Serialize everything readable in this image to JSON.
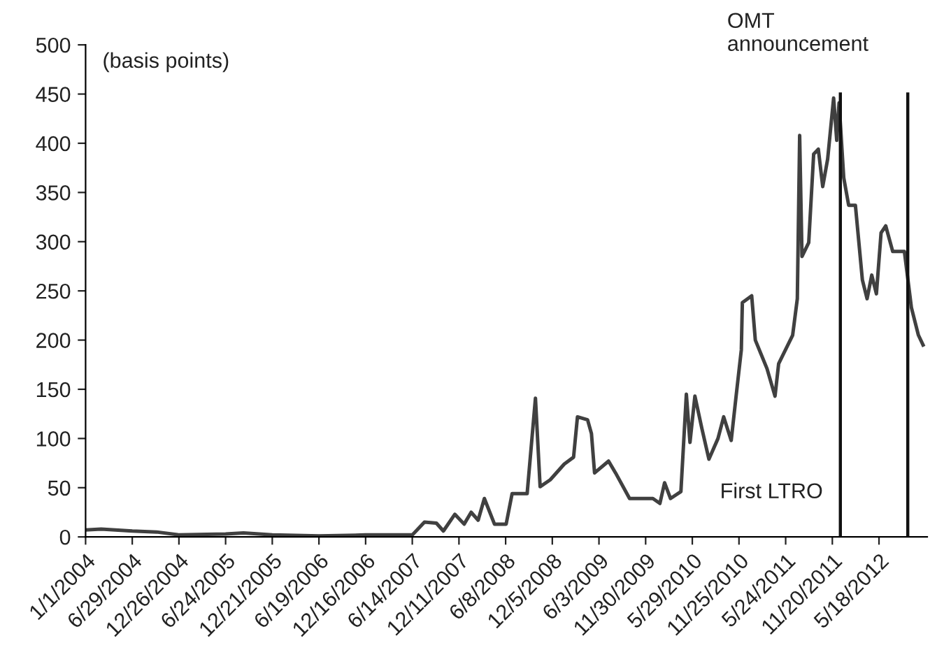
{
  "chart_data": {
    "type": "line",
    "ylabel": "(basis points)",
    "x": [
      "2004-01-01",
      "2004-03-01",
      "2004-06-29",
      "2004-10-01",
      "2004-12-26",
      "2005-06-24",
      "2005-09-01",
      "2005-12-21",
      "2006-06-19",
      "2006-12-16",
      "2007-06-14",
      "2007-07-31",
      "2007-09-15",
      "2007-10-12",
      "2007-11-25",
      "2007-12-31",
      "2008-01-27",
      "2008-02-23",
      "2008-03-18",
      "2008-04-26",
      "2008-06-10",
      "2008-07-03",
      "2008-08-30",
      "2008-10-01",
      "2008-10-19",
      "2008-11-27",
      "2009-01-20",
      "2009-02-25",
      "2009-03-12",
      "2009-04-20",
      "2009-05-05",
      "2009-05-17",
      "2009-07-10",
      "2009-08-06",
      "2009-09-29",
      "2009-12-28",
      "2010-01-24",
      "2010-02-11",
      "2010-03-06",
      "2010-04-15",
      "2010-05-06",
      "2010-05-20",
      "2010-06-08",
      "2010-07-05",
      "2010-08-01",
      "2010-09-05",
      "2010-09-27",
      "2010-10-26",
      "2010-11-16",
      "2010-12-04",
      "2010-12-08",
      "2011-01-13",
      "2011-01-27",
      "2011-03-13",
      "2011-04-13",
      "2011-04-27",
      "2011-06-20",
      "2011-07-08",
      "2011-07-17",
      "2011-07-26",
      "2011-08-21",
      "2011-09-09",
      "2011-09-27",
      "2011-10-14",
      "2011-11-02",
      "2011-11-25",
      "2011-12-07",
      "2011-12-16",
      "2012-01-03",
      "2012-01-22",
      "2012-02-17",
      "2012-03-15",
      "2012-04-02",
      "2012-04-20",
      "2012-05-08",
      "2012-05-26",
      "2012-06-13",
      "2012-07-10",
      "2012-08-24",
      "2012-09-20",
      "2012-10-17",
      "2012-11-04"
    ],
    "series": [
      {
        "color": "#404040",
        "values": [
          7,
          8,
          6,
          5,
          2,
          3,
          4,
          2,
          1,
          2,
          2,
          15,
          14,
          6,
          23,
          13,
          25,
          17,
          39,
          13,
          13,
          44,
          44,
          141,
          51,
          58,
          74,
          81,
          122,
          119,
          105,
          65,
          77,
          65,
          39,
          39,
          34,
          55,
          39,
          46,
          145,
          96,
          143,
          110,
          79,
          100,
          122,
          98,
          148,
          190,
          238,
          245,
          200,
          171,
          143,
          176,
          205,
          242,
          408,
          285,
          299,
          389,
          394,
          356,
          384,
          446,
          403,
          441,
          365,
          337,
          337,
          261,
          242,
          266,
          247,
          309,
          316,
          290,
          290,
          233,
          205,
          195
        ]
      }
    ],
    "xlim": [
      "2004-01-01",
      "2012-11-20"
    ],
    "xticks": [
      {
        "value": "2004-01-01",
        "label": "1/1/2004"
      },
      {
        "value": "2004-06-29",
        "label": "6/29/2004"
      },
      {
        "value": "2004-12-26",
        "label": "12/26/2004"
      },
      {
        "value": "2005-06-24",
        "label": "6/24/2005"
      },
      {
        "value": "2005-12-21",
        "label": "12/21/2005"
      },
      {
        "value": "2006-06-19",
        "label": "6/19/2006"
      },
      {
        "value": "2006-12-16",
        "label": "12/16/2006"
      },
      {
        "value": "2007-06-14",
        "label": "6/14/2007"
      },
      {
        "value": "2007-12-11",
        "label": "12/11/2007"
      },
      {
        "value": "2008-06-08",
        "label": "6/8/2008"
      },
      {
        "value": "2008-12-05",
        "label": "12/5/2008"
      },
      {
        "value": "2009-06-03",
        "label": "6/3/2009"
      },
      {
        "value": "2009-11-30",
        "label": "11/30/2009"
      },
      {
        "value": "2010-05-29",
        "label": "5/29/2010"
      },
      {
        "value": "2010-11-25",
        "label": "11/25/2010"
      },
      {
        "value": "2011-05-24",
        "label": "5/24/2011"
      },
      {
        "value": "2011-11-20",
        "label": "11/20/2011"
      },
      {
        "value": "2012-05-18",
        "label": "5/18/2012"
      }
    ],
    "ylim": [
      0,
      500
    ],
    "yticks": [
      0,
      50,
      100,
      150,
      200,
      250,
      300,
      350,
      400,
      450,
      500
    ],
    "grid": false,
    "line_style": "solid",
    "ref_lines": [
      {
        "axis": "x",
        "value": "2011-12-21",
        "color": "#111111"
      },
      {
        "axis": "x",
        "value": "2012-09-06",
        "color": "#111111"
      }
    ],
    "annotations": [
      {
        "text": "First LTRO",
        "x": "2011-12-21",
        "y": 45
      },
      {
        "text": "OMT\nannouncement",
        "x": "2012-09-06",
        "y": 450
      }
    ]
  }
}
